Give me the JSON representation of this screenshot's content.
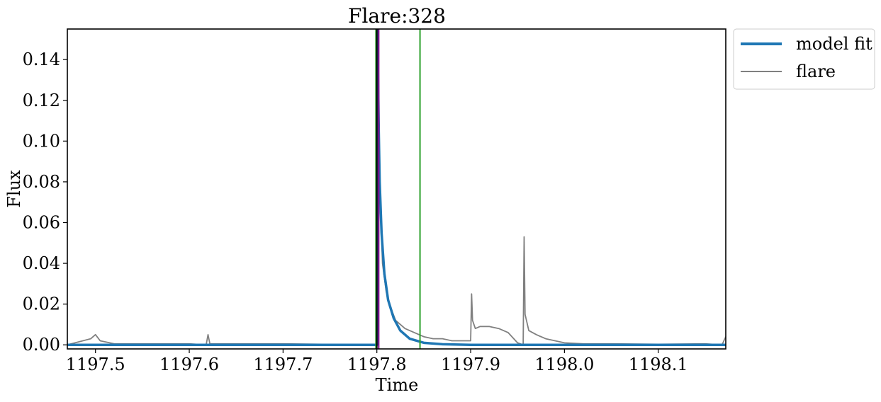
{
  "chart_data": {
    "type": "line",
    "title": "Flare:328",
    "xlabel": "Time",
    "ylabel": "Flux",
    "xlim": [
      1197.47,
      1198.172
    ],
    "ylim": [
      -0.002,
      0.155
    ],
    "x_ticks": [
      1197.5,
      1197.6,
      1197.7,
      1197.8,
      1197.9,
      1198.0,
      1198.1
    ],
    "x_tick_labels": [
      "1197.5",
      "1197.6",
      "1197.7",
      "1197.8",
      "1197.9",
      "1198.0",
      "1198.1"
    ],
    "y_ticks": [
      0.0,
      0.02,
      0.04,
      0.06,
      0.08,
      0.1,
      0.12,
      0.14
    ],
    "y_tick_labels": [
      "0.00",
      "0.02",
      "0.04",
      "0.06",
      "0.08",
      "0.10",
      "0.12",
      "0.14"
    ],
    "grid": false,
    "legend_placement": "outside-top-right",
    "series": [
      {
        "name": "model fit",
        "color": "#1f77b4",
        "x": [
          1197.47,
          1197.8,
          1197.8005,
          1197.801,
          1197.802,
          1197.803,
          1197.805,
          1197.808,
          1197.812,
          1197.818,
          1197.825,
          1197.835,
          1197.85,
          1197.87,
          1197.9,
          1198.172
        ],
        "values": [
          0.0,
          0.0,
          0.16,
          0.14,
          0.105,
          0.08,
          0.055,
          0.035,
          0.022,
          0.013,
          0.007,
          0.003,
          0.001,
          0.0003,
          0.0,
          0.0
        ]
      },
      {
        "name": "flare",
        "color": "#808080",
        "x": [
          1197.47,
          1197.495,
          1197.5,
          1197.505,
          1197.52,
          1197.6,
          1197.618,
          1197.62,
          1197.622,
          1197.7,
          1197.8,
          1197.8005,
          1197.803,
          1197.806,
          1197.81,
          1197.815,
          1197.82,
          1197.83,
          1197.84,
          1197.85,
          1197.86,
          1197.87,
          1197.88,
          1197.9,
          1197.901,
          1197.902,
          1197.905,
          1197.91,
          1197.92,
          1197.93,
          1197.94,
          1197.95,
          1197.956,
          1197.957,
          1197.958,
          1197.962,
          1197.97,
          1197.98,
          1198.0,
          1198.02,
          1198.05,
          1198.1,
          1198.15,
          1198.168,
          1198.172
        ],
        "values": [
          0.0,
          0.003,
          0.005,
          0.002,
          0.0005,
          0.0005,
          0.0,
          0.005,
          0.0005,
          0.0005,
          0.0,
          0.16,
          0.08,
          0.04,
          0.026,
          0.018,
          0.012,
          0.008,
          0.006,
          0.004,
          0.003,
          0.003,
          0.002,
          0.002,
          0.025,
          0.012,
          0.008,
          0.009,
          0.009,
          0.008,
          0.006,
          0.001,
          0.0,
          0.053,
          0.015,
          0.007,
          0.005,
          0.003,
          0.001,
          0.0005,
          0.0005,
          0.0003,
          0.0005,
          0.0,
          0.004
        ]
      }
    ],
    "reference_lines": [
      {
        "x": 1197.799,
        "color": "#2ca02c"
      },
      {
        "x": 1197.8,
        "color": "#000000"
      },
      {
        "x": 1197.802,
        "color": "#800080"
      },
      {
        "x": 1197.846,
        "color": "#2ca02c"
      }
    ],
    "legend": [
      {
        "label": "model fit",
        "color": "#1f77b4"
      },
      {
        "label": "flare",
        "color": "#808080"
      }
    ]
  }
}
